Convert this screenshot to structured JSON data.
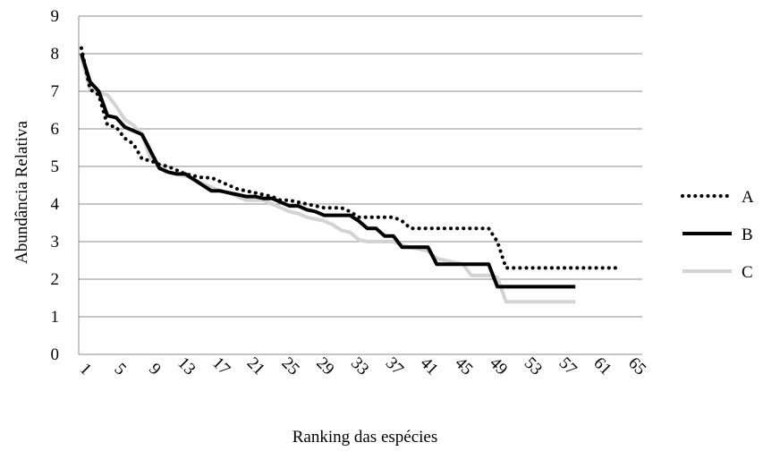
{
  "chart_data": {
    "type": "line",
    "title": "",
    "xlabel": "Ranking das espécies",
    "ylabel": "Abundância Relativa",
    "xlim": [
      1,
      65
    ],
    "ylim": [
      0,
      9
    ],
    "x_ticks": [
      1,
      5,
      9,
      13,
      17,
      21,
      25,
      29,
      33,
      37,
      41,
      45,
      49,
      53,
      57,
      61,
      65
    ],
    "y_ticks": [
      0,
      1,
      2,
      3,
      4,
      5,
      6,
      7,
      8,
      9
    ],
    "grid": "horizontal",
    "legend_position": "right",
    "series": [
      {
        "name": "A",
        "style": "dotted",
        "color": "#000000",
        "x": [
          1,
          2,
          3,
          4,
          5,
          6,
          7,
          8,
          9,
          10,
          11,
          12,
          13,
          14,
          15,
          16,
          17,
          18,
          19,
          20,
          21,
          22,
          23,
          24,
          25,
          26,
          27,
          28,
          29,
          30,
          31,
          32,
          33,
          34,
          35,
          36,
          37,
          38,
          39,
          40,
          41,
          42,
          43,
          44,
          45,
          46,
          47,
          48,
          49,
          50,
          51,
          52,
          53,
          54,
          55,
          56,
          57,
          58,
          59,
          60,
          61,
          62,
          63
        ],
        "values": [
          8.15,
          7.05,
          6.9,
          6.1,
          6.05,
          5.75,
          5.6,
          5.2,
          5.15,
          5.05,
          5.0,
          4.9,
          4.8,
          4.75,
          4.7,
          4.7,
          4.6,
          4.5,
          4.4,
          4.35,
          4.3,
          4.25,
          4.2,
          4.1,
          4.1,
          4.05,
          4.0,
          3.95,
          3.9,
          3.9,
          3.9,
          3.8,
          3.65,
          3.65,
          3.65,
          3.65,
          3.65,
          3.55,
          3.35,
          3.35,
          3.35,
          3.35,
          3.35,
          3.35,
          3.35,
          3.35,
          3.35,
          3.35,
          3.0,
          2.3,
          2.3,
          2.3,
          2.3,
          2.3,
          2.3,
          2.3,
          2.3,
          2.3,
          2.3,
          2.3,
          2.3,
          2.3,
          2.3
        ]
      },
      {
        "name": "B",
        "style": "solid",
        "color": "#000000",
        "x": [
          1,
          2,
          3,
          4,
          5,
          6,
          7,
          8,
          9,
          10,
          11,
          12,
          13,
          14,
          15,
          16,
          17,
          18,
          19,
          20,
          21,
          22,
          23,
          24,
          25,
          26,
          27,
          28,
          29,
          30,
          31,
          32,
          33,
          34,
          35,
          36,
          37,
          38,
          39,
          40,
          41,
          42,
          43,
          44,
          45,
          46,
          47,
          48,
          49,
          50,
          51,
          52,
          53,
          54,
          55,
          56,
          57,
          58
        ],
        "values": [
          8.0,
          7.25,
          7.0,
          6.35,
          6.3,
          6.05,
          5.95,
          5.85,
          5.4,
          4.95,
          4.85,
          4.8,
          4.8,
          4.65,
          4.5,
          4.35,
          4.35,
          4.3,
          4.25,
          4.2,
          4.2,
          4.15,
          4.15,
          4.05,
          3.95,
          3.95,
          3.85,
          3.8,
          3.7,
          3.7,
          3.7,
          3.7,
          3.55,
          3.35,
          3.35,
          3.15,
          3.15,
          2.85,
          2.85,
          2.85,
          2.85,
          2.4,
          2.4,
          2.4,
          2.4,
          2.4,
          2.4,
          2.4,
          1.8,
          1.8,
          1.8,
          1.8,
          1.8,
          1.8,
          1.8,
          1.8,
          1.8,
          1.8
        ]
      },
      {
        "name": "C",
        "style": "solid",
        "color": "#d3d3d3",
        "x": [
          1,
          2,
          3,
          4,
          5,
          6,
          7,
          8,
          9,
          10,
          11,
          12,
          13,
          14,
          15,
          16,
          17,
          18,
          19,
          20,
          21,
          22,
          23,
          24,
          25,
          26,
          27,
          28,
          29,
          30,
          31,
          32,
          33,
          34,
          35,
          36,
          37,
          38,
          39,
          40,
          41,
          42,
          43,
          44,
          45,
          46,
          47,
          48,
          49,
          50,
          51,
          52,
          53,
          54,
          55,
          56,
          57,
          58
        ],
        "values": [
          7.9,
          7.05,
          6.95,
          6.9,
          6.6,
          6.25,
          6.1,
          5.85,
          5.2,
          5.05,
          4.85,
          4.8,
          4.75,
          4.65,
          4.55,
          4.45,
          4.35,
          4.3,
          4.2,
          4.1,
          4.1,
          4.1,
          4.0,
          3.9,
          3.8,
          3.75,
          3.65,
          3.6,
          3.55,
          3.45,
          3.3,
          3.25,
          3.05,
          3.0,
          3.0,
          3.0,
          3.0,
          2.9,
          2.85,
          2.8,
          2.75,
          2.55,
          2.5,
          2.45,
          2.4,
          2.1,
          2.1,
          2.1,
          2.05,
          1.4,
          1.4,
          1.4,
          1.4,
          1.4,
          1.4,
          1.4,
          1.4,
          1.4
        ]
      }
    ]
  }
}
